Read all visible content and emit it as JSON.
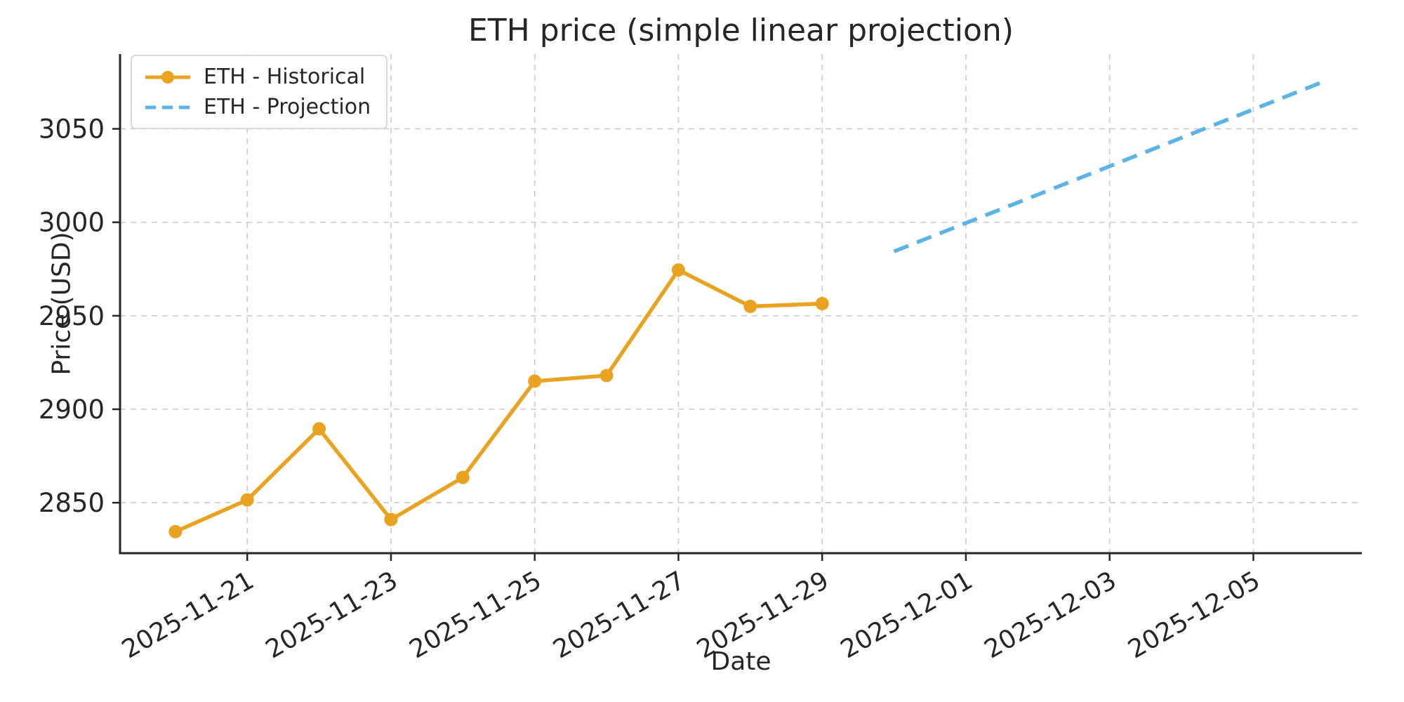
{
  "chart_data": {
    "type": "line",
    "title": "ETH price (simple linear projection)",
    "xlabel": "Date",
    "ylabel": "Price (USD)",
    "grid": true,
    "legend_position": "upper left",
    "background": "#ffffff",
    "text_color": "#262626",
    "gridline_color": "#cdcdcd",
    "spine_color": "#262626",
    "x_start_date": "2025-11-20",
    "xlim_days": [
      -0.77,
      16.51
    ],
    "ylim": [
      2823,
      3090
    ],
    "y_ticks": [
      2850,
      2900,
      2950,
      3000,
      3050
    ],
    "x_tick_labels": [
      "2025-11-21",
      "2025-11-23",
      "2025-11-25",
      "2025-11-27",
      "2025-11-29",
      "2025-12-01",
      "2025-12-03",
      "2025-12-05"
    ],
    "series": [
      {
        "name": "ETH - Historical",
        "color": "#E9A321",
        "style": "solid",
        "marker": "circle",
        "x": [
          "2025-11-20",
          "2025-11-21",
          "2025-11-22",
          "2025-11-23",
          "2025-11-24",
          "2025-11-25",
          "2025-11-26",
          "2025-11-27",
          "2025-11-28",
          "2025-11-29"
        ],
        "values": [
          2834.5,
          2851.5,
          2889.5,
          2841.0,
          2863.5,
          2915.0,
          2918.0,
          2974.5,
          2955.0,
          2956.5
        ]
      },
      {
        "name": "ETH - Projection",
        "color": "#5BB4E5",
        "style": "dashed",
        "marker": "none",
        "x": [
          "2025-11-30",
          "2025-12-01",
          "2025-12-02",
          "2025-12-03",
          "2025-12-04",
          "2025-12-05",
          "2025-12-06"
        ],
        "values": [
          2984.4,
          2999.6,
          3014.8,
          3030.0,
          3045.2,
          3060.4,
          3075.6
        ]
      }
    ]
  }
}
